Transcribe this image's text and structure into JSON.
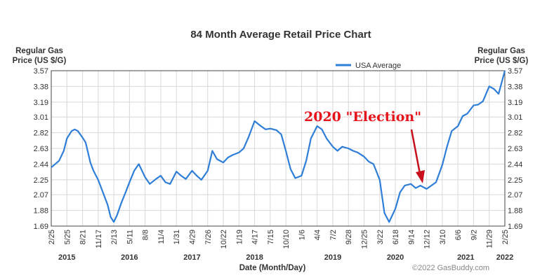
{
  "chart_data": {
    "type": "line",
    "title": "84 Month Average Retail Price Chart",
    "ylabel_left": [
      "Regular Gas",
      "Price (US $/G)"
    ],
    "ylabel_right": [
      "Regular Gas",
      "Price (US $/G)"
    ],
    "xlabel": "Date (Month/Day)",
    "ylim": [
      1.69,
      3.57
    ],
    "yticks": [
      "1.69",
      "1.88",
      "2.07",
      "2.25",
      "2.44",
      "2.63",
      "2.82",
      "3.01",
      "3.19",
      "3.38",
      "3.57"
    ],
    "xticks": [
      "2/25",
      "5/25",
      "8/21",
      "11/17",
      "2/13",
      "5/11",
      "8/8",
      "11/4",
      "1/31",
      "4/29",
      "7/26",
      "10/22",
      "1/19",
      "4/17",
      "7/15",
      "10/10",
      "1/6",
      "4/4",
      "7/2",
      "9/28",
      "12/25",
      "3/22",
      "6/18",
      "9/14",
      "12/12",
      "3/10",
      "6/6",
      "9/2",
      "11/29",
      "2/25"
    ],
    "years": [
      {
        "label": "2015",
        "tick_index": 1
      },
      {
        "label": "2016",
        "tick_index": 5
      },
      {
        "label": "2017",
        "tick_index": 9
      },
      {
        "label": "2018",
        "tick_index": 13
      },
      {
        "label": "2019",
        "tick_index": 18
      },
      {
        "label": "2020",
        "tick_index": 22
      },
      {
        "label": "2021",
        "tick_index": 26.5
      },
      {
        "label": "2022",
        "tick_index": 29
      }
    ],
    "legend": "USA Average",
    "series": [
      {
        "name": "USA Average",
        "color": "#2f7ed8",
        "x": [
          0,
          0.5,
          0.8,
          1.0,
          1.3,
          1.5,
          1.7,
          2.0,
          2.2,
          2.5,
          2.7,
          3.0,
          3.3,
          3.6,
          3.8,
          4.0,
          4.2,
          4.5,
          4.8,
          5.0,
          5.3,
          5.6,
          6.0,
          6.3,
          6.7,
          7.0,
          7.3,
          7.6,
          8.0,
          8.3,
          8.6,
          9.0,
          9.3,
          9.6,
          10.0,
          10.3,
          10.6,
          11.0,
          11.3,
          11.6,
          12.0,
          12.3,
          12.6,
          13.0,
          13.4,
          13.7,
          14.0,
          14.4,
          14.7,
          15.0,
          15.3,
          15.6,
          16.0,
          16.3,
          16.6,
          17.0,
          17.3,
          17.6,
          18.0,
          18.3,
          18.6,
          19.0,
          19.3,
          19.6,
          20.0,
          20.3,
          20.6,
          21.0,
          21.3,
          21.6,
          22.0,
          22.3,
          22.6,
          23.0,
          23.3,
          23.6,
          24.0,
          24.3,
          24.6,
          25.0,
          25.3,
          25.6,
          26.0,
          26.3,
          26.6,
          27.0,
          27.3,
          27.6,
          28.0,
          28.3,
          28.6,
          29.0
        ],
        "values": [
          2.4,
          2.48,
          2.6,
          2.75,
          2.84,
          2.86,
          2.84,
          2.76,
          2.7,
          2.46,
          2.36,
          2.25,
          2.1,
          1.95,
          1.8,
          1.74,
          1.82,
          1.98,
          2.12,
          2.22,
          2.36,
          2.44,
          2.28,
          2.2,
          2.26,
          2.3,
          2.22,
          2.2,
          2.35,
          2.3,
          2.26,
          2.36,
          2.3,
          2.25,
          2.36,
          2.6,
          2.5,
          2.46,
          2.52,
          2.55,
          2.58,
          2.63,
          2.76,
          2.96,
          2.9,
          2.86,
          2.87,
          2.85,
          2.8,
          2.6,
          2.38,
          2.27,
          2.3,
          2.48,
          2.75,
          2.9,
          2.86,
          2.75,
          2.65,
          2.6,
          2.65,
          2.63,
          2.6,
          2.58,
          2.53,
          2.47,
          2.44,
          2.25,
          1.85,
          1.74,
          1.9,
          2.1,
          2.18,
          2.2,
          2.15,
          2.18,
          2.14,
          2.18,
          2.22,
          2.43,
          2.65,
          2.84,
          2.9,
          3.02,
          3.05,
          3.15,
          3.16,
          3.2,
          3.38,
          3.35,
          3.29,
          3.57
        ]
      }
    ],
    "annotation": "2020 \"Election\""
  },
  "credit": "©2022 GasBuddy.com"
}
